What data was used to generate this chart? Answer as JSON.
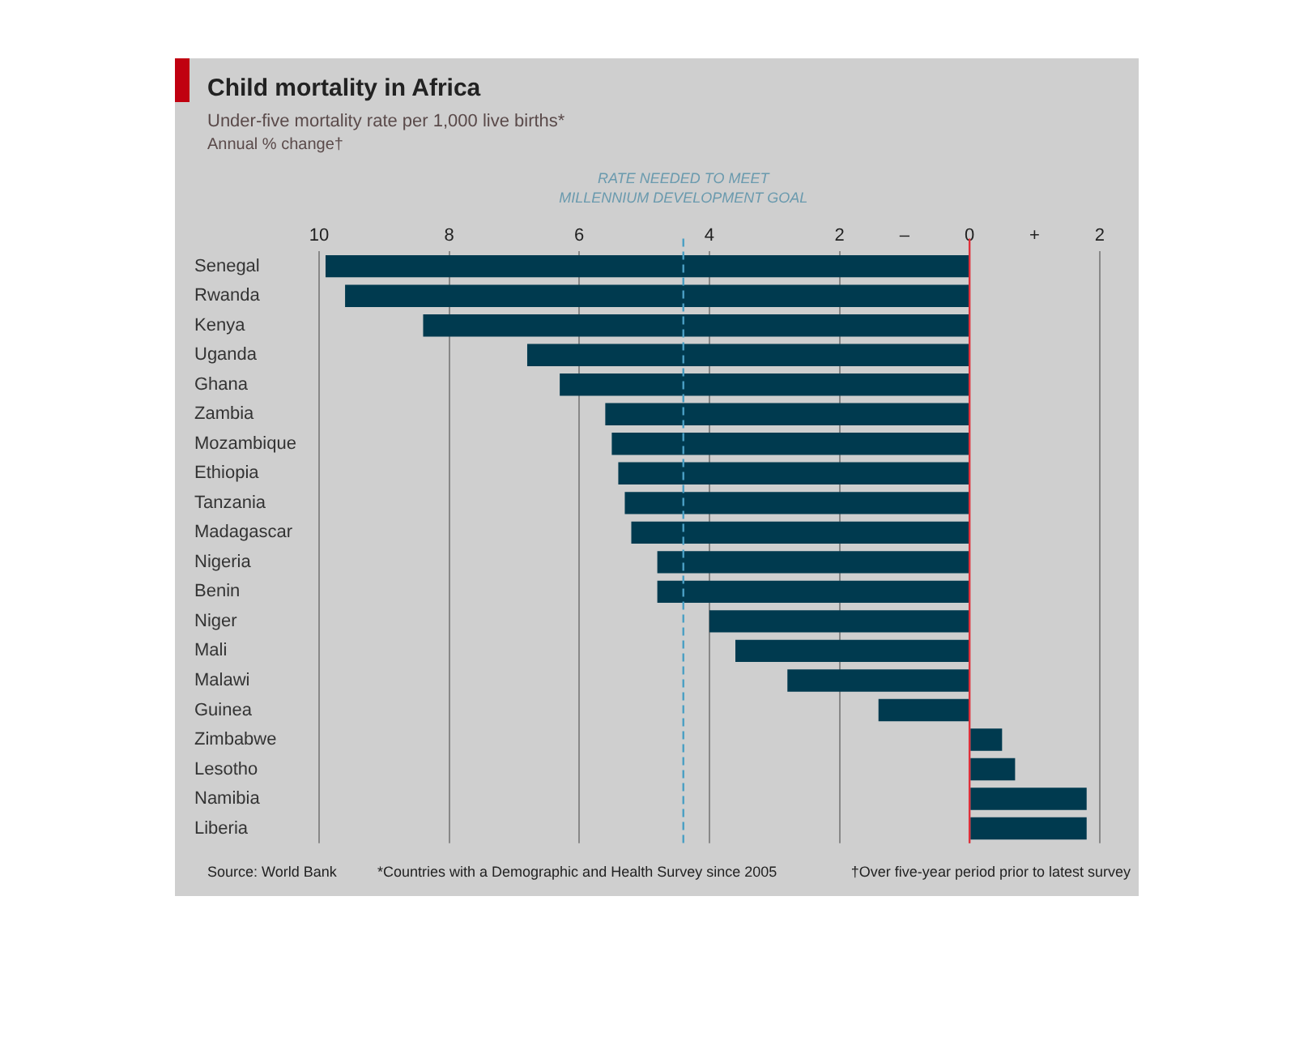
{
  "chart_data": {
    "type": "bar",
    "orientation": "horizontal",
    "title": "Child mortality in Africa",
    "subtitle": "Under-five mortality rate per 1,000 live births*",
    "xlabel": "Annual % change†",
    "categories": [
      "Senegal",
      "Rwanda",
      "Kenya",
      "Uganda",
      "Ghana",
      "Zambia",
      "Mozambique",
      "Ethiopia",
      "Tanzania",
      "Madagascar",
      "Nigeria",
      "Benin",
      "Niger",
      "Mali",
      "Malawi",
      "Guinea",
      "Zimbabwe",
      "Lesotho",
      "Namibia",
      "Liberia"
    ],
    "values": [
      -9.9,
      -9.6,
      -8.4,
      -6.8,
      -6.3,
      -5.6,
      -5.5,
      -5.4,
      -5.3,
      -5.2,
      -4.8,
      -4.8,
      -4.0,
      -3.6,
      -2.8,
      -1.4,
      0.5,
      0.7,
      1.8,
      1.8
    ],
    "color": "#003a4f",
    "xlim": [
      -10,
      2.6
    ],
    "xticks": [
      {
        "value": -10,
        "label": "10"
      },
      {
        "value": -8,
        "label": "8"
      },
      {
        "value": -6,
        "label": "6"
      },
      {
        "value": -4,
        "label": "4"
      },
      {
        "value": -2,
        "label": "2"
      },
      {
        "value": -1,
        "label": "–"
      },
      0,
      {
        "value": 1,
        "label": "+"
      },
      2
    ],
    "grid": "x",
    "ref_lines": [
      {
        "axis": "x",
        "value": -4.4,
        "label": "RATE NEEDED TO MEET MILLENNIUM DEVELOPMENT GOAL",
        "color": "#4a9fc4",
        "line_style": "dashed"
      },
      {
        "axis": "x",
        "value": 0,
        "color": "#e0303a",
        "line_style": "solid"
      }
    ],
    "annotations": [
      "Source: World Bank",
      "*Countries with a Demographic and Health Survey since 2005",
      "†Over five-year period prior to latest survey"
    ]
  }
}
